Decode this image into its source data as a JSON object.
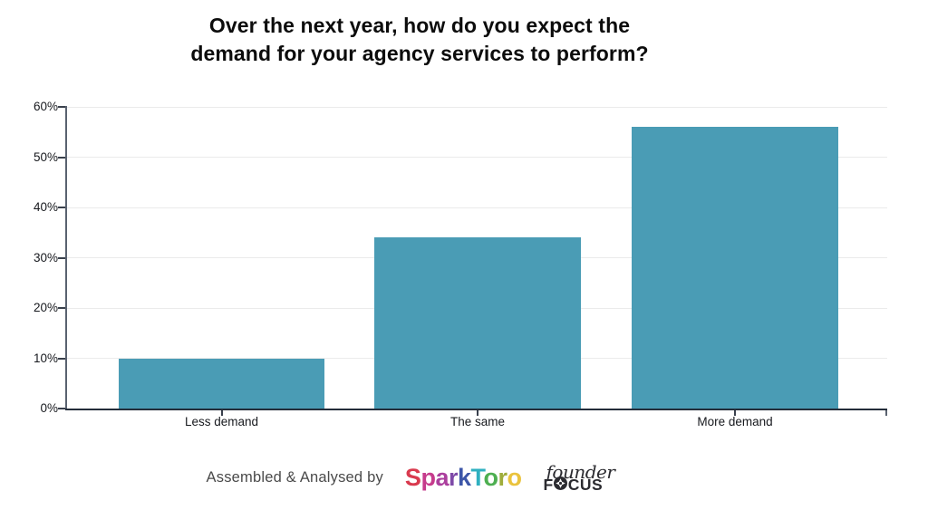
{
  "title": {
    "line1": "Over the next year, how do you expect the",
    "line2": "demand for your agency services to perform?"
  },
  "chart_data": {
    "type": "bar",
    "categories": [
      "Less demand",
      "The same",
      "More demand"
    ],
    "values": [
      10,
      34,
      56
    ],
    "value_unit": "%",
    "title": "Over the next year, how do you expect the demand for your agency services to perform?",
    "xlabel": "",
    "ylabel": "",
    "ylim": [
      0,
      60
    ],
    "yticks": [
      0,
      10,
      20,
      30,
      40,
      50,
      60
    ],
    "ytick_labels": [
      "0%",
      "10%",
      "20%",
      "30%",
      "40%",
      "50%",
      "60%"
    ],
    "bar_color": "#4a9cb5",
    "grid": "horizontal-light",
    "legend": "none"
  },
  "footer": {
    "credit_text": "Assembled & Analysed by",
    "sparktoro_logo": {
      "name": "SparkToro",
      "letters": [
        {
          "ch": "S",
          "color": "#d93a4e"
        },
        {
          "ch": "p",
          "color": "#c63b8c"
        },
        {
          "ch": "a",
          "color": "#ab3f9d"
        },
        {
          "ch": "r",
          "color": "#7e4aa8"
        },
        {
          "ch": "k",
          "color": "#3d56a8"
        },
        {
          "ch": "T",
          "color": "#2fb0c0"
        },
        {
          "ch": "o",
          "color": "#4daf51"
        },
        {
          "ch": "r",
          "color": "#9fad3b"
        },
        {
          "ch": "o",
          "color": "#eac33d"
        }
      ]
    },
    "founderfocus_logo": {
      "line1": "founder",
      "line2_left": "F",
      "line2_right": "CUS",
      "gear_icon": "aperture-gear",
      "color": "#2b2b30"
    }
  },
  "colors": {
    "background": "#ffffff",
    "bar": "#4a9cb5",
    "gridline": "#ebebeb",
    "y_axis": "#5a6270",
    "x_axis": "#242d3a",
    "tick": "#39404c",
    "label": "#17191e",
    "title": "#0c0c0c",
    "credit_text": "#4a4a4a"
  }
}
